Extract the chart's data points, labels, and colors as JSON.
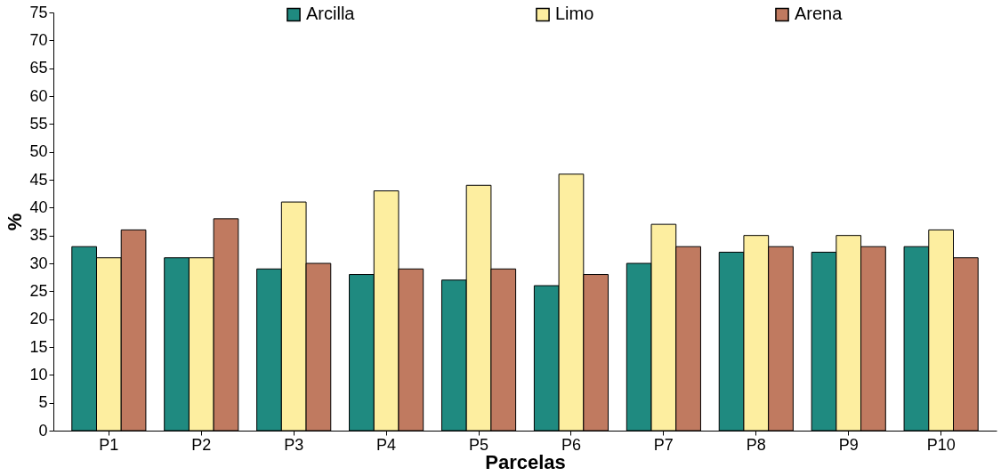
{
  "chart_data": {
    "type": "bar",
    "xlabel": "Parcelas",
    "ylabel": "%",
    "categories": [
      "P1",
      "P2",
      "P3",
      "P4",
      "P5",
      "P6",
      "P7",
      "P8",
      "P9",
      "P10"
    ],
    "series": [
      {
        "name": "Arcilla",
        "color": "#1f8a80",
        "values": [
          33,
          31,
          29,
          28,
          27,
          26,
          30,
          32,
          32,
          33
        ]
      },
      {
        "name": "Limo",
        "color": "#fdeea0",
        "values": [
          31,
          31,
          41,
          43,
          44,
          46,
          37,
          35,
          35,
          36
        ]
      },
      {
        "name": "Arena",
        "color": "#c07a60",
        "values": [
          36,
          38,
          30,
          29,
          29,
          28,
          33,
          33,
          33,
          31
        ]
      }
    ],
    "ylim": [
      0,
      75
    ],
    "yticks": [
      0,
      5,
      10,
      15,
      20,
      25,
      30,
      35,
      40,
      45,
      50,
      55,
      60,
      65,
      70,
      75
    ],
    "grid": false,
    "legend": "top"
  }
}
